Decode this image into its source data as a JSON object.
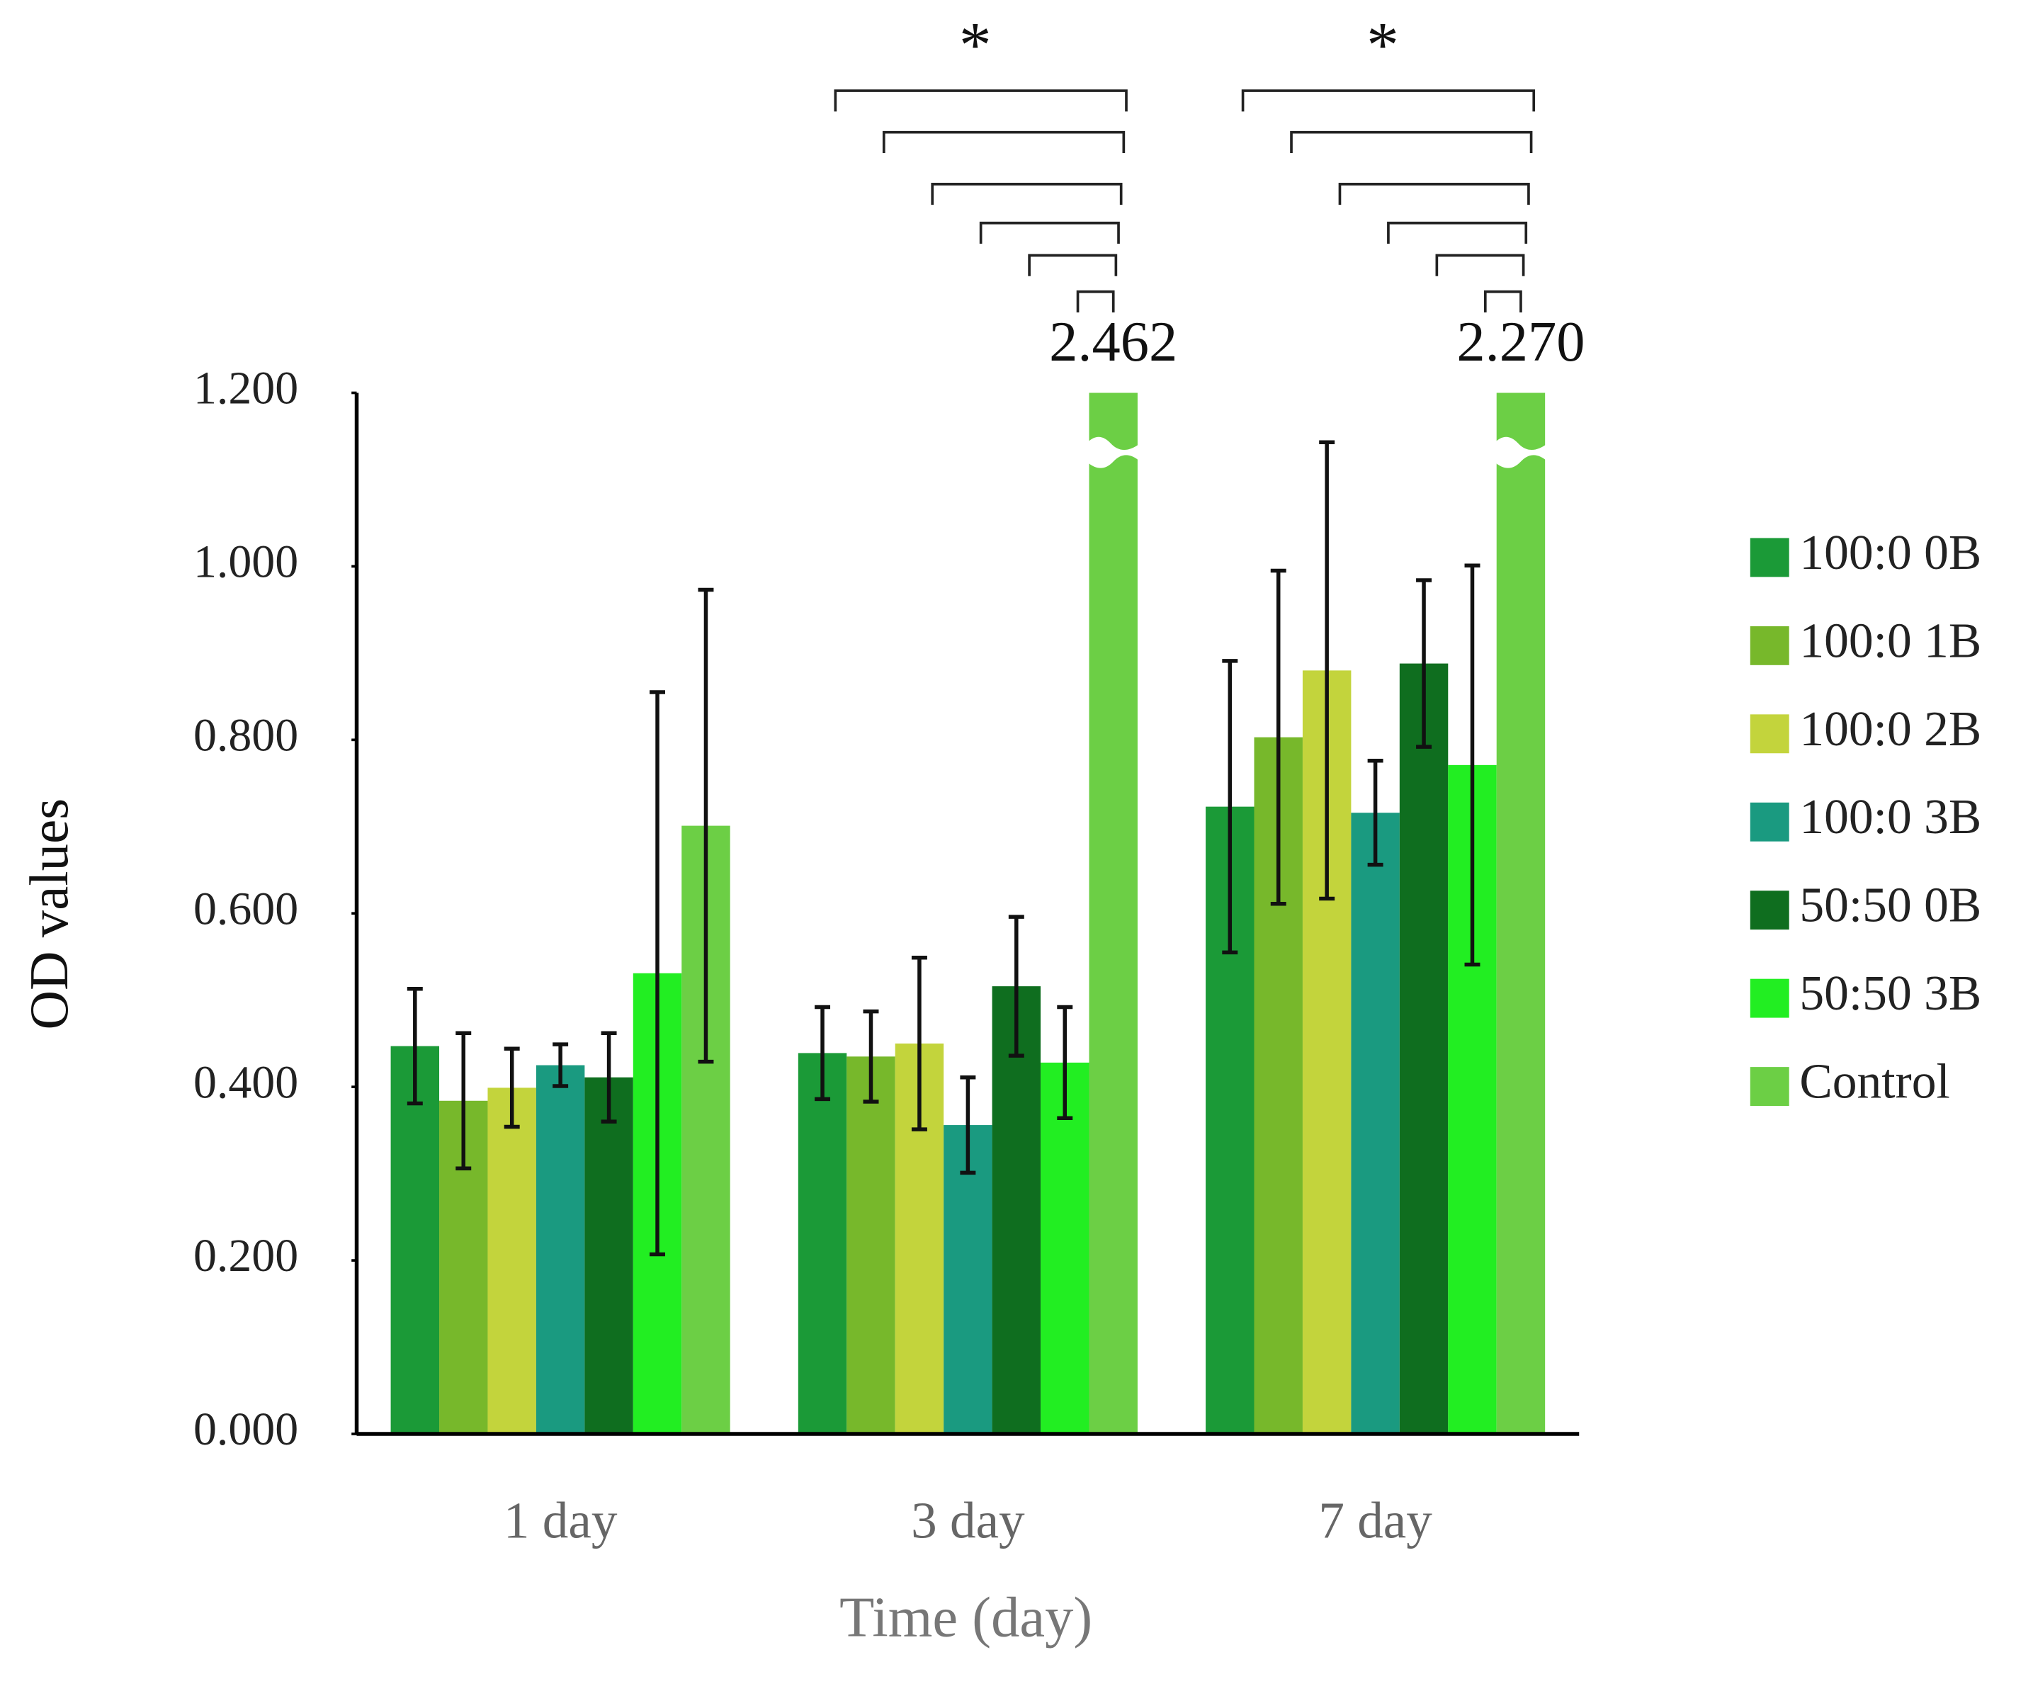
{
  "chart_data": {
    "type": "bar",
    "x_label": "Time (day)",
    "y_label": "OD values",
    "categories": [
      "1 day",
      "3 day",
      "7 day"
    ],
    "ylim": [
      0,
      1.2
    ],
    "yticks": [
      {
        "value": 0,
        "label": "0.000"
      },
      {
        "value": 0.2,
        "label": "0.200"
      },
      {
        "value": 0.4,
        "label": "0.400"
      },
      {
        "value": 0.6,
        "label": "0.600"
      },
      {
        "value": 0.8,
        "label": "0.800"
      },
      {
        "value": 1.0,
        "label": "1.000"
      },
      {
        "value": 1.2,
        "label": "1.200"
      }
    ],
    "legend": "right",
    "annotations": [
      "*",
      "*"
    ],
    "series": [
      {
        "name": "100:0 0B",
        "color": "#1b9a37",
        "values": [
          0.447,
          0.439,
          0.723
        ],
        "errors": [
          0.066,
          0.053,
          0.168
        ]
      },
      {
        "name": "100:0 1B",
        "color": "#77b82b",
        "values": [
          0.384,
          0.435,
          0.803
        ],
        "errors": [
          0.078,
          0.052,
          0.192
        ]
      },
      {
        "name": "100:0 2B",
        "color": "#c3d43c",
        "values": [
          0.399,
          0.45,
          0.88
        ],
        "errors": [
          0.045,
          0.099,
          0.263
        ]
      },
      {
        "name": "100:0 3B",
        "color": "#1a9a80",
        "values": [
          0.425,
          0.356,
          0.716
        ],
        "errors": [
          0.024,
          0.055,
          0.06
        ]
      },
      {
        "name": "50:50 0B",
        "color": "#0f6e1f",
        "values": [
          0.411,
          0.516,
          0.888
        ],
        "errors": [
          0.051,
          0.08,
          0.096
        ]
      },
      {
        "name": "50:50 3B",
        "color": "#22ee22",
        "values": [
          0.531,
          0.428,
          0.771
        ],
        "errors": [
          0.324,
          0.064,
          0.23
        ]
      },
      {
        "name": "Control",
        "color": "#6ccf45",
        "values": [
          0.701,
          2.462,
          2.27
        ],
        "errors": [
          0.272,
          null,
          null
        ],
        "value_labels": [
          null,
          "2.462",
          "2.270"
        ]
      }
    ]
  }
}
